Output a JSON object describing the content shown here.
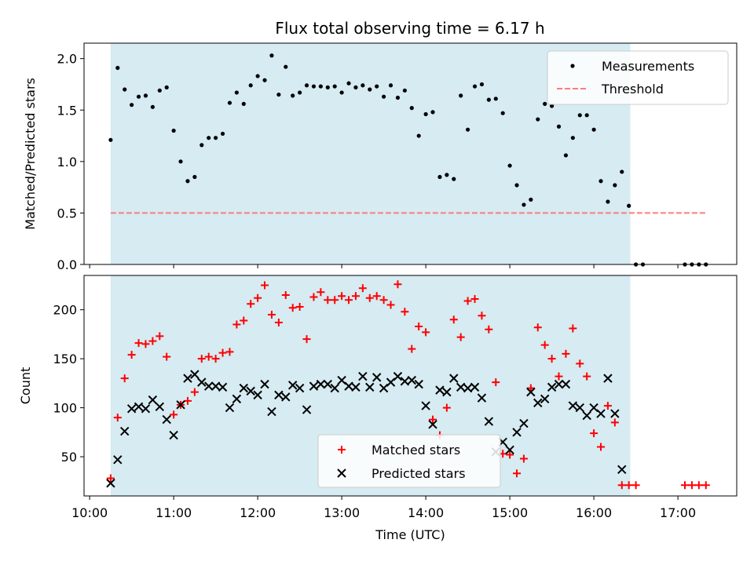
{
  "chart_data": [
    {
      "type": "scatter",
      "title": "Flux total observing time = 6.17 h",
      "xlabel": "",
      "ylabel": "Matched/Predicted stars",
      "xlim": [
        "09:56",
        "17:42"
      ],
      "ylim": [
        0,
        2.15
      ],
      "yticks": [
        0.0,
        0.5,
        1.0,
        1.5,
        2.0
      ],
      "ytick_labels": [
        "0.0",
        "0.5",
        "1.0",
        "1.5",
        "2.0"
      ],
      "observing_window": [
        "10:15",
        "16:26"
      ],
      "window_color": "#add8e6",
      "legend": "top-right",
      "threshold": {
        "name": "Threshold",
        "value": 0.5,
        "x": [
          "10:15",
          "17:20"
        ],
        "color": "#ff7b7b"
      },
      "series": [
        {
          "name": "Measurements",
          "color": "#000000",
          "points": [
            [
              "10:15",
              1.21
            ],
            [
              "10:20",
              1.91
            ],
            [
              "10:25",
              1.7
            ],
            [
              "10:30",
              1.55
            ],
            [
              "10:35",
              1.63
            ],
            [
              "10:40",
              1.64
            ],
            [
              "10:45",
              1.53
            ],
            [
              "10:50",
              1.69
            ],
            [
              "10:55",
              1.72
            ],
            [
              "11:00",
              1.3
            ],
            [
              "11:05",
              1.0
            ],
            [
              "11:10",
              0.81
            ],
            [
              "11:15",
              0.85
            ],
            [
              "11:20",
              1.16
            ],
            [
              "11:25",
              1.23
            ],
            [
              "11:30",
              1.23
            ],
            [
              "11:35",
              1.27
            ],
            [
              "11:40",
              1.57
            ],
            [
              "11:45",
              1.67
            ],
            [
              "11:50",
              1.56
            ],
            [
              "11:55",
              1.74
            ],
            [
              "12:00",
              1.83
            ],
            [
              "12:05",
              1.79
            ],
            [
              "12:10",
              2.03
            ],
            [
              "12:15",
              1.65
            ],
            [
              "12:20",
              1.92
            ],
            [
              "12:25",
              1.64
            ],
            [
              "12:30",
              1.67
            ],
            [
              "12:35",
              1.74
            ],
            [
              "12:40",
              1.73
            ],
            [
              "12:45",
              1.73
            ],
            [
              "12:50",
              1.72
            ],
            [
              "12:55",
              1.73
            ],
            [
              "13:00",
              1.67
            ],
            [
              "13:05",
              1.76
            ],
            [
              "13:10",
              1.72
            ],
            [
              "13:15",
              1.74
            ],
            [
              "13:20",
              1.7
            ],
            [
              "13:25",
              1.73
            ],
            [
              "13:30",
              1.63
            ],
            [
              "13:35",
              1.74
            ],
            [
              "13:40",
              1.62
            ],
            [
              "13:45",
              1.69
            ],
            [
              "13:50",
              1.52
            ],
            [
              "13:55",
              1.25
            ],
            [
              "14:00",
              1.46
            ],
            [
              "14:05",
              1.48
            ],
            [
              "14:10",
              0.85
            ],
            [
              "14:15",
              0.87
            ],
            [
              "14:20",
              0.83
            ],
            [
              "14:25",
              1.64
            ],
            [
              "14:30",
              1.31
            ],
            [
              "14:35",
              1.73
            ],
            [
              "14:40",
              1.75
            ],
            [
              "14:45",
              1.6
            ],
            [
              "14:50",
              1.61
            ],
            [
              "14:55",
              1.47
            ],
            [
              "15:00",
              0.96
            ],
            [
              "15:05",
              0.77
            ],
            [
              "15:10",
              0.58
            ],
            [
              "15:15",
              0.63
            ],
            [
              "15:20",
              1.41
            ],
            [
              "15:25",
              1.56
            ],
            [
              "15:30",
              1.54
            ],
            [
              "15:35",
              1.34
            ],
            [
              "15:40",
              1.06
            ],
            [
              "15:45",
              1.23
            ],
            [
              "15:50",
              1.45
            ],
            [
              "15:55",
              1.45
            ],
            [
              "16:00",
              1.31
            ],
            [
              "16:05",
              0.81
            ],
            [
              "16:10",
              0.61
            ],
            [
              "16:15",
              0.77
            ],
            [
              "16:20",
              0.9
            ],
            [
              "16:25",
              0.57
            ],
            [
              "16:30",
              0.0
            ],
            [
              "16:35",
              0.0
            ],
            [
              "17:05",
              0.0
            ],
            [
              "17:10",
              0.0
            ],
            [
              "17:15",
              0.0
            ],
            [
              "17:20",
              0.0
            ]
          ]
        }
      ]
    },
    {
      "type": "scatter",
      "title": "",
      "xlabel": "Time (UTC)",
      "ylabel": "Count",
      "xlim": [
        "09:56",
        "17:42"
      ],
      "ylim": [
        10,
        235
      ],
      "yticks": [
        50,
        100,
        150,
        200
      ],
      "xticks": [
        "10:00",
        "11:00",
        "12:00",
        "13:00",
        "14:00",
        "15:00",
        "16:00",
        "17:00"
      ],
      "observing_window": [
        "10:15",
        "16:26"
      ],
      "window_color": "#add8e6",
      "legend": "bottom-center",
      "series": [
        {
          "name": "Matched stars",
          "marker": "plus",
          "color": "#ff0000",
          "points": [
            [
              "10:15",
              28
            ],
            [
              "10:20",
              90
            ],
            [
              "10:25",
              130
            ],
            [
              "10:30",
              154
            ],
            [
              "10:35",
              166
            ],
            [
              "10:40",
              165
            ],
            [
              "10:45",
              168
            ],
            [
              "10:50",
              173
            ],
            [
              "10:55",
              152
            ],
            [
              "11:00",
              93
            ],
            [
              "11:05",
              103
            ],
            [
              "11:10",
              107
            ],
            [
              "11:15",
              116
            ],
            [
              "11:20",
              150
            ],
            [
              "11:25",
              152
            ],
            [
              "11:30",
              150
            ],
            [
              "11:35",
              156
            ],
            [
              "11:40",
              157
            ],
            [
              "11:45",
              185
            ],
            [
              "11:50",
              189
            ],
            [
              "11:55",
              206
            ],
            [
              "12:00",
              212
            ],
            [
              "12:05",
              225
            ],
            [
              "12:10",
              195
            ],
            [
              "12:15",
              187
            ],
            [
              "12:20",
              215
            ],
            [
              "12:25",
              202
            ],
            [
              "12:30",
              203
            ],
            [
              "12:35",
              170
            ],
            [
              "12:40",
              213
            ],
            [
              "12:45",
              218
            ],
            [
              "12:50",
              210
            ],
            [
              "12:55",
              210
            ],
            [
              "13:00",
              214
            ],
            [
              "13:05",
              210
            ],
            [
              "13:10",
              214
            ],
            [
              "13:15",
              222
            ],
            [
              "13:20",
              212
            ],
            [
              "13:25",
              214
            ],
            [
              "13:30",
              210
            ],
            [
              "13:35",
              205
            ],
            [
              "13:40",
              226
            ],
            [
              "13:45",
              198
            ],
            [
              "13:50",
              160
            ],
            [
              "13:55",
              183
            ],
            [
              "14:00",
              177
            ],
            [
              "14:05",
              88
            ],
            [
              "14:10",
              72
            ],
            [
              "14:15",
              100
            ],
            [
              "14:20",
              190
            ],
            [
              "14:25",
              172
            ],
            [
              "14:30",
              209
            ],
            [
              "14:35",
              211
            ],
            [
              "14:40",
              194
            ],
            [
              "14:45",
              180
            ],
            [
              "14:50",
              126
            ],
            [
              "14:55",
              53
            ],
            [
              "15:00",
              52
            ],
            [
              "15:05",
              33
            ],
            [
              "15:10",
              48
            ],
            [
              "15:15",
              120
            ],
            [
              "15:20",
              182
            ],
            [
              "15:25",
              164
            ],
            [
              "15:30",
              150
            ],
            [
              "15:35",
              132
            ],
            [
              "15:40",
              155
            ],
            [
              "15:45",
              181
            ],
            [
              "15:50",
              145
            ],
            [
              "15:55",
              132
            ],
            [
              "16:00",
              74
            ],
            [
              "16:05",
              60
            ],
            [
              "16:10",
              102
            ],
            [
              "16:15",
              85
            ],
            [
              "16:20",
              21
            ],
            [
              "16:25",
              21
            ],
            [
              "16:30",
              21
            ],
            [
              "17:05",
              21
            ],
            [
              "17:10",
              21
            ],
            [
              "17:15",
              21
            ],
            [
              "17:20",
              21
            ]
          ]
        },
        {
          "name": "Predicted stars",
          "marker": "x",
          "color": "#000000",
          "points": [
            [
              "10:15",
              23
            ],
            [
              "10:20",
              47
            ],
            [
              "10:25",
              76
            ],
            [
              "10:30",
              99
            ],
            [
              "10:35",
              101
            ],
            [
              "10:40",
              99
            ],
            [
              "10:45",
              108
            ],
            [
              "10:50",
              101
            ],
            [
              "10:55",
              88
            ],
            [
              "11:00",
              72
            ],
            [
              "11:05",
              103
            ],
            [
              "11:10",
              130
            ],
            [
              "11:15",
              134
            ],
            [
              "11:20",
              126
            ],
            [
              "11:25",
              122
            ],
            [
              "11:30",
              122
            ],
            [
              "11:35",
              121
            ],
            [
              "11:40",
              100
            ],
            [
              "11:45",
              109
            ],
            [
              "11:50",
              120
            ],
            [
              "11:55",
              117
            ],
            [
              "12:00",
              113
            ],
            [
              "12:05",
              124
            ],
            [
              "12:10",
              96
            ],
            [
              "12:15",
              113
            ],
            [
              "12:20",
              111
            ],
            [
              "12:25",
              123
            ],
            [
              "12:30",
              120
            ],
            [
              "12:35",
              98
            ],
            [
              "12:40",
              122
            ],
            [
              "12:45",
              124
            ],
            [
              "12:50",
              124
            ],
            [
              "12:55",
              120
            ],
            [
              "13:00",
              128
            ],
            [
              "13:05",
              122
            ],
            [
              "13:10",
              121
            ],
            [
              "13:15",
              132
            ],
            [
              "13:20",
              121
            ],
            [
              "13:25",
              131
            ],
            [
              "13:30",
              120
            ],
            [
              "13:35",
              126
            ],
            [
              "13:40",
              132
            ],
            [
              "13:45",
              127
            ],
            [
              "13:50",
              128
            ],
            [
              "13:55",
              124
            ],
            [
              "14:00",
              102
            ],
            [
              "14:05",
              83
            ],
            [
              "14:10",
              118
            ],
            [
              "14:15",
              116
            ],
            [
              "14:20",
              130
            ],
            [
              "14:25",
              121
            ],
            [
              "14:30",
              120
            ],
            [
              "14:35",
              121
            ],
            [
              "14:40",
              110
            ],
            [
              "14:45",
              86
            ],
            [
              "14:50",
              55
            ],
            [
              "14:55",
              65
            ],
            [
              "15:00",
              57
            ],
            [
              "15:05",
              75
            ],
            [
              "15:10",
              84
            ],
            [
              "15:15",
              116
            ],
            [
              "15:20",
              105
            ],
            [
              "15:25",
              109
            ],
            [
              "15:30",
              121
            ],
            [
              "15:35",
              124
            ],
            [
              "15:40",
              124
            ],
            [
              "15:45",
              102
            ],
            [
              "15:50",
              100
            ],
            [
              "15:55",
              92
            ],
            [
              "16:00",
              100
            ],
            [
              "16:05",
              94
            ],
            [
              "16:10",
              130
            ],
            [
              "16:15",
              94
            ],
            [
              "16:20",
              37
            ]
          ]
        }
      ]
    }
  ]
}
